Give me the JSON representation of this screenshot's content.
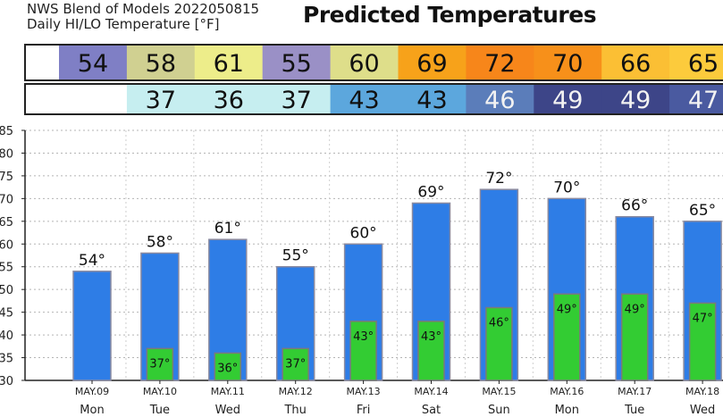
{
  "header": {
    "source": "NWS Blend of Models 2022050815",
    "units": "Daily HI/LO Temperature [°F]",
    "title": "Predicted Temperatures"
  },
  "colors": {
    "hi_bar": "#2e7de6",
    "hi_bar_edge": "#8a8aa0",
    "lo_bar": "#33cc33",
    "lo_bar_edge": "#7a7a7a",
    "hi_row_cells": [
      "#7f7fc5",
      "#d0d091",
      "#eded8a",
      "#9a90c6",
      "#dede8a",
      "#f7a21a",
      "#f7861a",
      "#f7901a",
      "#fbbf34",
      "#fccb3c"
    ],
    "lo_row_cells": [
      "#c6eef0",
      "#c6eef0",
      "#c6eef0",
      "#5ca7dd",
      "#5ca7dd",
      "#5b7dba",
      "#3d4588",
      "#3d4588",
      "#4a5aa0"
    ]
  },
  "chart_data": {
    "type": "bar",
    "categories": [
      "MAY.09",
      "MAY.10",
      "MAY.11",
      "MAY.12",
      "MAY.13",
      "MAY.14",
      "MAY.15",
      "MAY.16",
      "MAY.17",
      "MAY.18"
    ],
    "days": [
      "Mon",
      "Tue",
      "Wed",
      "Thu",
      "Fri",
      "Sat",
      "Sun",
      "Mon",
      "Tue",
      "Wed"
    ],
    "series": [
      {
        "values": [
          54,
          58,
          61,
          55,
          60,
          69,
          72,
          70,
          66,
          65
        ]
      },
      {
        "values": [
          null,
          37,
          36,
          37,
          43,
          43,
          46,
          49,
          49,
          47
        ]
      }
    ],
    "hi_labels": [
      "54°",
      "58°",
      "61°",
      "55°",
      "60°",
      "69°",
      "72°",
      "70°",
      "66°",
      "65°"
    ],
    "lo_labels": [
      "",
      "37°",
      "36°",
      "37°",
      "43°",
      "43°",
      "46°",
      "49°",
      "49°",
      "47°"
    ],
    "yticks": [
      "30",
      "35",
      "40",
      "45",
      "50",
      "55",
      "60",
      "65",
      "70",
      "75",
      "80",
      "85"
    ],
    "ylim": [
      30,
      85
    ],
    "grid": true,
    "hi_row": [
      "54",
      "58",
      "61",
      "55",
      "60",
      "69",
      "72",
      "70",
      "66",
      "65"
    ],
    "lo_row": [
      "37",
      "36",
      "37",
      "43",
      "43",
      "46",
      "49",
      "49",
      "47"
    ]
  }
}
